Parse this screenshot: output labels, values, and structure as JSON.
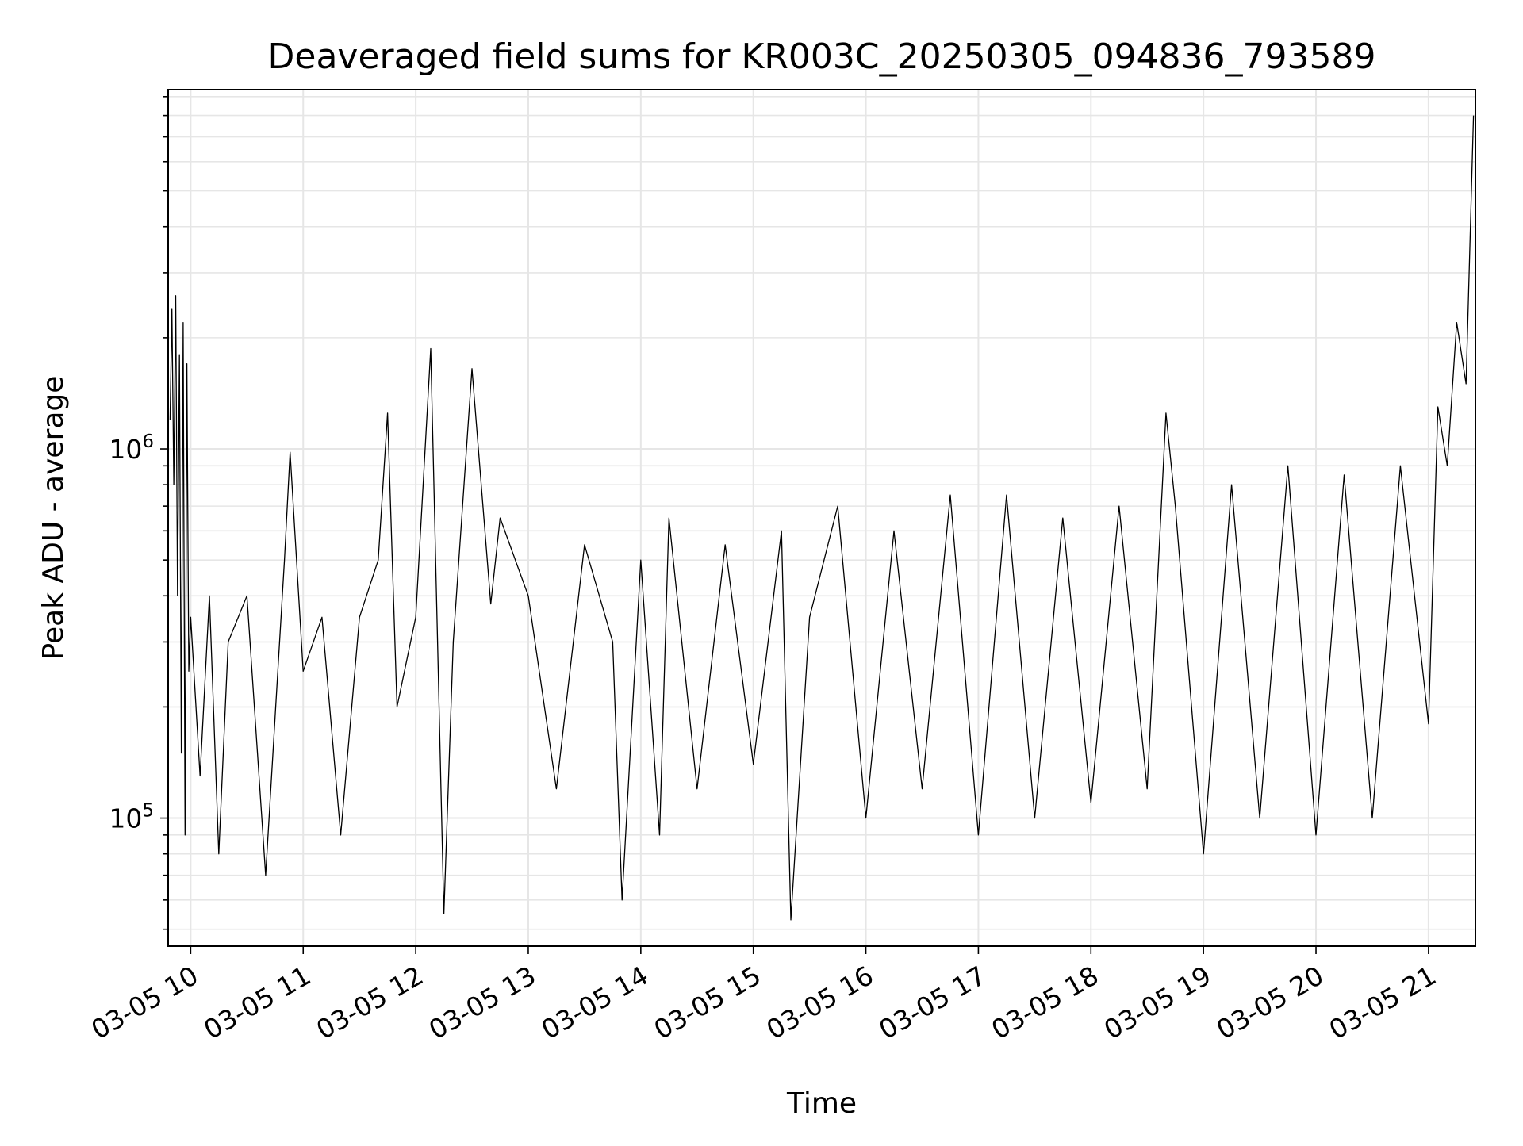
{
  "chart_data": {
    "type": "line",
    "title": "Deaveraged field sums for KR003C_20250305_094836_793589",
    "xlabel": "Time",
    "ylabel": "Peak ADU - average",
    "x_ticks": [
      "03-05 10",
      "03-05 11",
      "03-05 12",
      "03-05 13",
      "03-05 14",
      "03-05 15",
      "03-05 16",
      "03-05 17",
      "03-05 18",
      "03-05 19",
      "03-05 20",
      "03-05 21"
    ],
    "y_ticks": [
      {
        "base": "10",
        "exp": "5",
        "value": 100000
      },
      {
        "base": "10",
        "exp": "6",
        "value": 1000000
      }
    ],
    "xlim": [
      "2025-03-05 09:48",
      "2025-03-05 21:25"
    ],
    "ylim": [
      45000,
      9400000
    ],
    "yscale": "log",
    "grid": true,
    "line_color": "#000000",
    "series": [
      {
        "x": [
          "09:49",
          "09:50",
          "09:51",
          "09:52",
          "09:53",
          "09:54",
          "09:55",
          "09:56",
          "09:57",
          "09:58",
          "09:59",
          "10:00",
          "10:05",
          "10:10",
          "10:15",
          "10:20",
          "10:30",
          "10:40",
          "10:50",
          "10:53",
          "11:00",
          "11:10",
          "11:20",
          "11:30",
          "11:40",
          "11:45",
          "11:50",
          "12:00",
          "12:08",
          "12:15",
          "12:20",
          "12:30",
          "12:40",
          "12:45",
          "13:00",
          "13:15",
          "13:30",
          "13:45",
          "13:50",
          "14:00",
          "14:10",
          "14:15",
          "14:30",
          "14:45",
          "15:00",
          "15:15",
          "15:20",
          "15:30",
          "15:45",
          "16:00",
          "16:15",
          "16:30",
          "16:45",
          "17:00",
          "17:15",
          "17:30",
          "17:45",
          "18:00",
          "18:15",
          "18:30",
          "18:40",
          "18:45",
          "19:00",
          "19:15",
          "19:30",
          "19:45",
          "20:00",
          "20:15",
          "20:30",
          "20:45",
          "21:00",
          "21:05",
          "21:10",
          "21:15",
          "21:20",
          "21:24"
        ],
        "y": [
          1200000,
          2400000,
          800000,
          2600000,
          400000,
          1800000,
          150000,
          2200000,
          90000,
          1700000,
          250000,
          350000,
          130000,
          400000,
          80000,
          300000,
          400000,
          70000,
          500000,
          980000,
          250000,
          350000,
          90000,
          350000,
          500000,
          1250000,
          200000,
          350000,
          1870000,
          55000,
          300000,
          1650000,
          380000,
          650000,
          400000,
          120000,
          550000,
          300000,
          60000,
          500000,
          90000,
          650000,
          120000,
          550000,
          140000,
          600000,
          53000,
          350000,
          700000,
          100000,
          600000,
          120000,
          750000,
          90000,
          750000,
          100000,
          650000,
          110000,
          700000,
          120000,
          1250000,
          700000,
          80000,
          800000,
          100000,
          900000,
          90000,
          850000,
          100000,
          900000,
          180000,
          1300000,
          900000,
          2200000,
          1500000,
          8000000
        ]
      }
    ]
  }
}
